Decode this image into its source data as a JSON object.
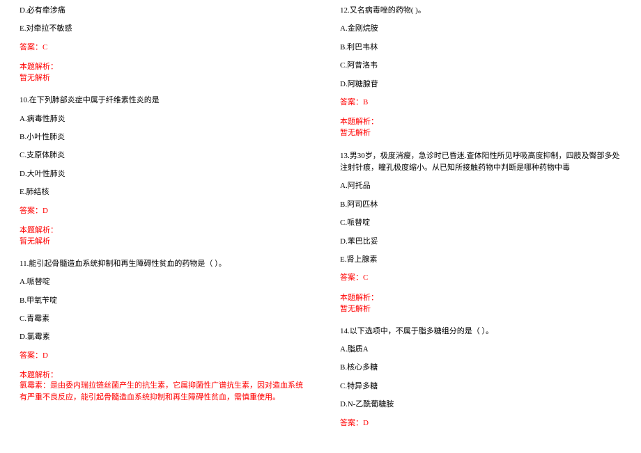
{
  "colors": {
    "text": "#000000",
    "answer": "#ff0000",
    "background": "#ffffff"
  },
  "typography": {
    "font_family": "SimSun",
    "font_size_pt": 8
  },
  "left": {
    "q9": {
      "optD": "D.必有牵涉痛",
      "optE": "E.对牵拉不敏感",
      "answer": "答案：C",
      "explain_label": "本题解析：",
      "explain_body": "暂无解析"
    },
    "q10": {
      "stem": "10.在下列肺部炎症中属于纤维素性炎的是",
      "optA": "A.病毒性肺炎",
      "optB": "B.小叶性肺炎",
      "optC": "C.支原体肺炎",
      "optD": "D.大叶性肺炎",
      "optE": "E.肺结核",
      "answer": "答案：D",
      "explain_label": "本题解析：",
      "explain_body": "暂无解析"
    },
    "q11": {
      "stem": "11.能引起骨髓造血系统抑制和再生障碍性贫血的药物是（ ）。",
      "optA": "A.哌替啶",
      "optB": "B.甲氧苄啶",
      "optC": "C.青霉素",
      "optD": "D.氯霉素",
      "answer": "答案：D",
      "explain_label": "本题解析：",
      "explain_body": "氯霉素：是由委内瑞拉链丝菌产生的抗生素，它属抑菌性广谱抗生素，因对造血系统有严重不良反应，能引起骨髓造血系统抑制和再生障碍性贫血，需慎重使用。"
    }
  },
  "right": {
    "q12": {
      "stem": "12.又名病毒唑的药物( )。",
      "optA": "A.金刚烷胺",
      "optB": "B.利巴韦林",
      "optC": "C.阿昔洛韦",
      "optD": "D.阿糖腺苷",
      "answer": "答案：B",
      "explain_label": "本题解析：",
      "explain_body": "暂无解析"
    },
    "q13": {
      "stem": "13.男30岁，极度消瘦，急诊时已昏迷.查体阳性所见呼吸高度抑制，四肢及臀部多处注射针痕，瞳孔极度缩小。从已知所接触药物中判断是哪种药物中毒",
      "optA": "A.阿托品",
      "optB": "B.阿司匹林",
      "optC": "C.哌替啶",
      "optD": "D.苯巴比妥",
      "optE": "E.肾上腺素",
      "answer": "答案：C",
      "explain_label": "本题解析：",
      "explain_body": "暂无解析"
    },
    "q14": {
      "stem": "14.以下选项中，不属于脂多糖组分的是（ ）。",
      "optA": "A.脂质A",
      "optB": "B.核心多糖",
      "optC": "C.特异多糖",
      "optD": "D.N-乙酰葡糖胺",
      "answer": "答案：D"
    }
  }
}
